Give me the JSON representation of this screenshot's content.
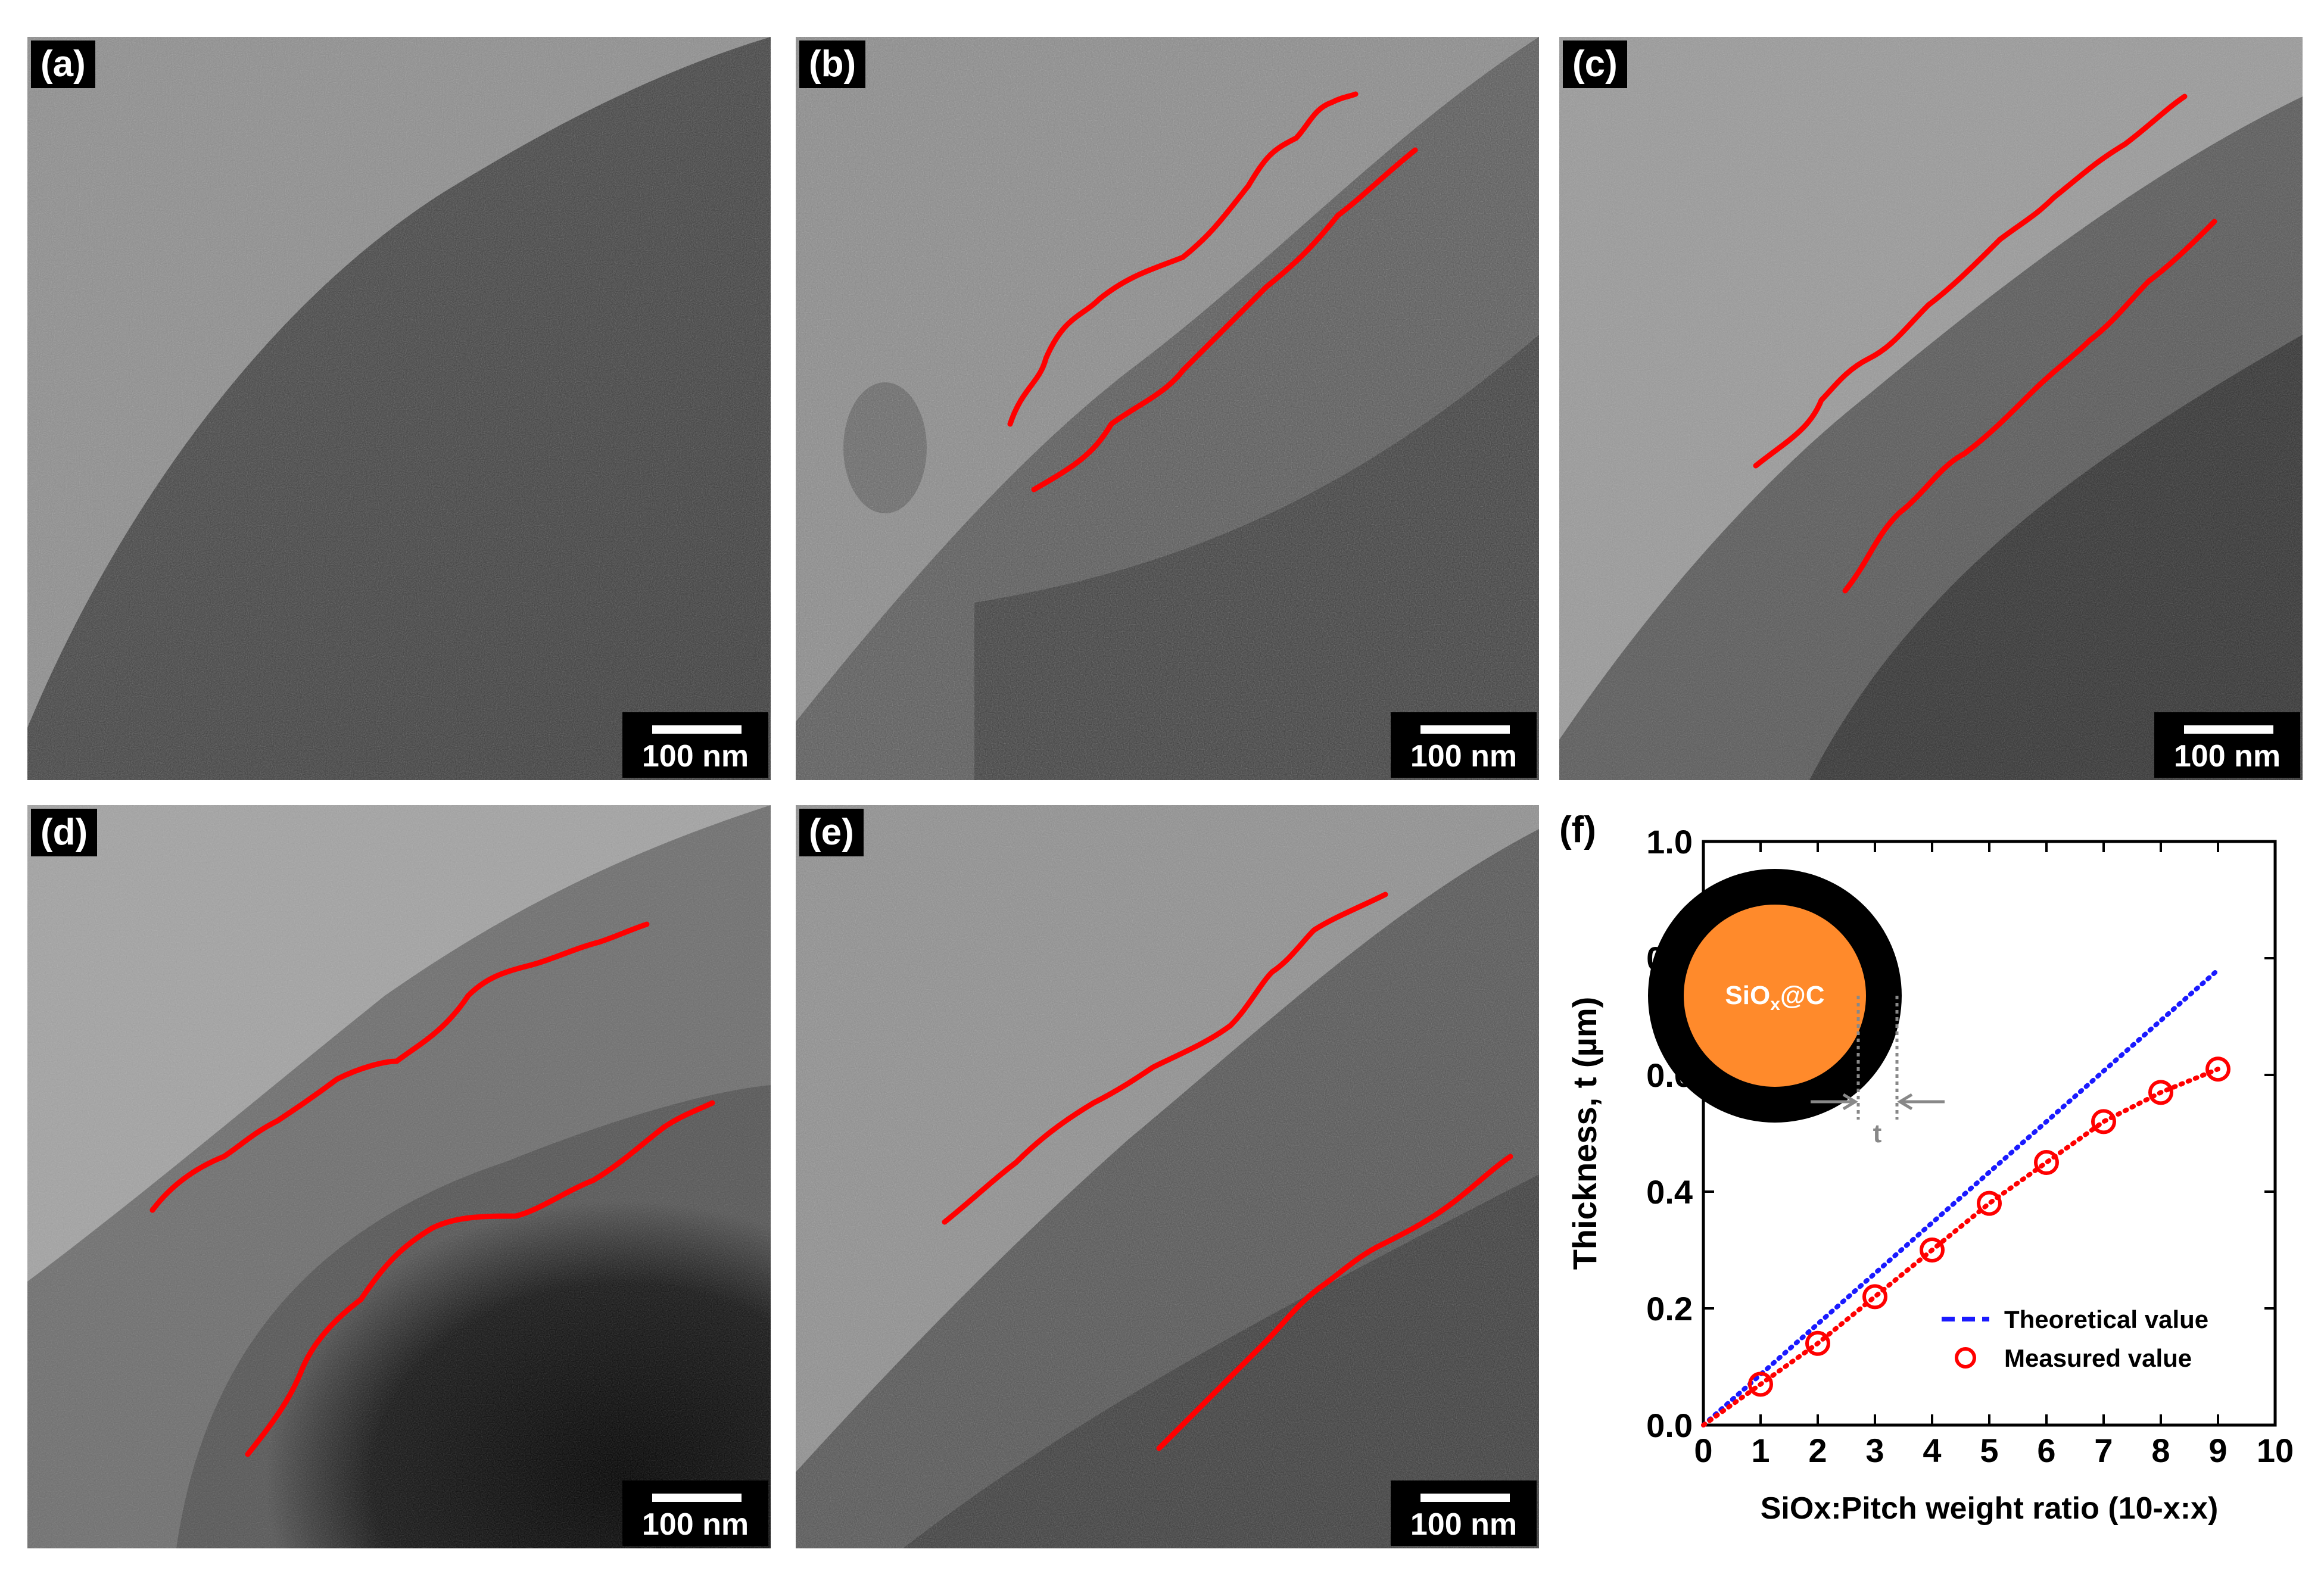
{
  "panels": [
    {
      "id": "a",
      "label": "(a)",
      "scale_text": "100 nm"
    },
    {
      "id": "b",
      "label": "(b)",
      "scale_text": "100 nm"
    },
    {
      "id": "c",
      "label": "(c)",
      "scale_text": "100 nm"
    },
    {
      "id": "d",
      "label": "(d)",
      "scale_text": "100 nm"
    },
    {
      "id": "e",
      "label": "(e)",
      "scale_text": "100 nm"
    }
  ],
  "panel_f": {
    "label": "(f)"
  },
  "colors": {
    "trace": "#ff0000",
    "theoretical": "#1a1aff",
    "measured": "#ff0000",
    "core": "#ff8a2b",
    "shell": "#000000"
  },
  "chart_data": {
    "type": "scatter",
    "xlabel": "SiOx:Pitch weight ratio (10-x:x)",
    "ylabel": "Thickness, t (µm)",
    "xlim": [
      0,
      10
    ],
    "ylim": [
      0,
      1.0
    ],
    "xticks": [
      "0",
      "1",
      "2",
      "3",
      "4",
      "5",
      "6",
      "7",
      "8",
      "9",
      "10"
    ],
    "yticks": [
      "0.0",
      "0.2",
      "0.4",
      "0.6",
      "0.8",
      "1.0"
    ],
    "series": [
      {
        "name": "Theoretical value",
        "style": "dotted line",
        "x": [
          0,
          9
        ],
        "y": [
          0.0,
          0.78
        ]
      },
      {
        "name": "Measured value",
        "style": "open circles with dotted line",
        "x": [
          0,
          1,
          2,
          3,
          4,
          5,
          6,
          7,
          8,
          9
        ],
        "y": [
          0.0,
          0.07,
          0.14,
          0.22,
          0.3,
          0.38,
          0.45,
          0.52,
          0.57,
          0.61
        ]
      }
    ],
    "legend": {
      "placement": "bottom-right",
      "theoretical_label": "Theoretical value",
      "measured_label": "Measured value"
    },
    "inset": {
      "core_label_main": "SiO",
      "core_label_sub": "x",
      "core_label_tail": "@C",
      "dimension_label": "t"
    }
  }
}
